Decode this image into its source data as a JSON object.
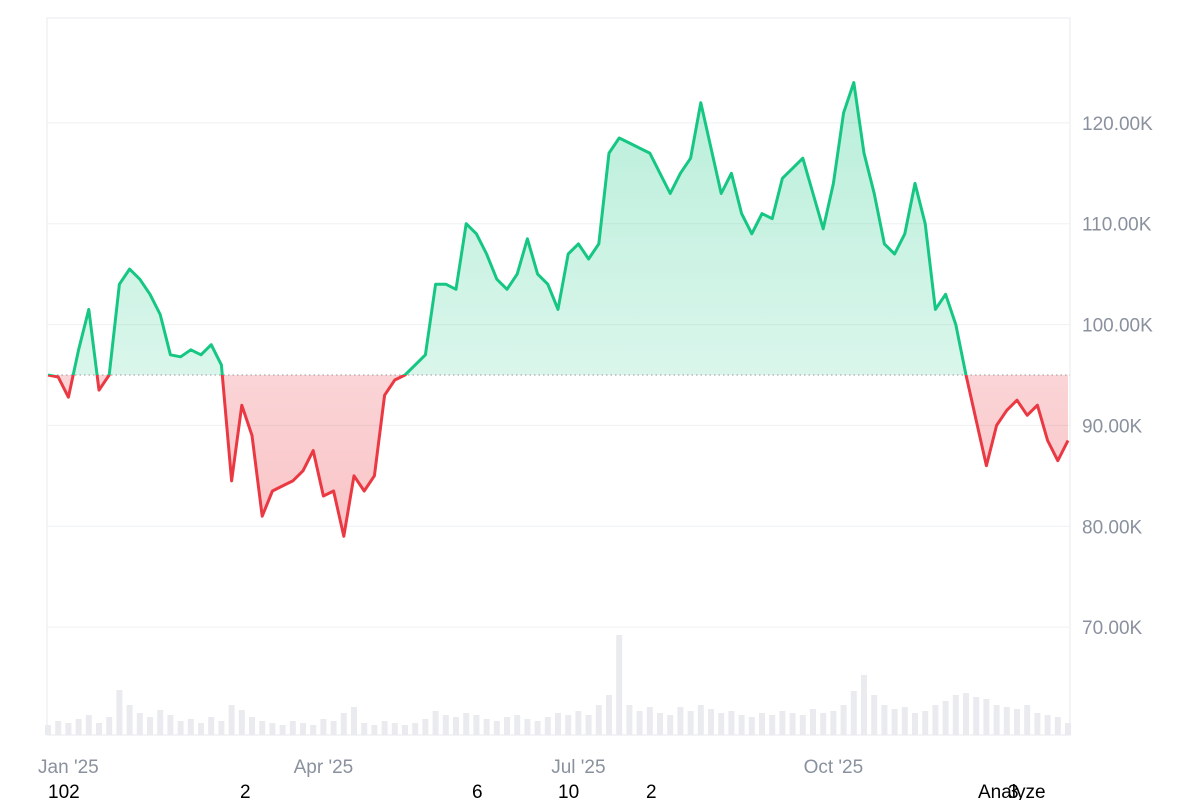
{
  "chart_data": {
    "type": "baseline-area",
    "categories": [
      null,
      null,
      "Jan '25",
      null,
      null,
      null,
      null,
      null,
      null,
      null,
      null,
      null,
      null,
      null,
      null,
      null,
      null,
      null,
      null,
      null,
      null,
      null,
      null,
      null,
      null,
      null,
      null,
      "Apr '25",
      null,
      null,
      null,
      null,
      null,
      null,
      null,
      null,
      null,
      null,
      null,
      null,
      null,
      null,
      null,
      null,
      null,
      null,
      null,
      null,
      null,
      null,
      null,
      null,
      "Jul '25",
      null,
      null,
      null,
      null,
      null,
      null,
      null,
      null,
      null,
      null,
      null,
      null,
      null,
      null,
      null,
      null,
      null,
      null,
      null,
      null,
      null,
      null,
      null,
      null,
      "Oct '25",
      null,
      null,
      null,
      null,
      null,
      null,
      null,
      null,
      null,
      null,
      null,
      null,
      null,
      null,
      null,
      null,
      null,
      null,
      null,
      null,
      null,
      null,
      null
    ],
    "values": [
      95000,
      94800,
      92800,
      97500,
      101500,
      93500,
      95000,
      104000,
      105500,
      104500,
      103000,
      101000,
      97000,
      96800,
      97500,
      97000,
      98000,
      96000,
      84500,
      92000,
      89000,
      81000,
      83500,
      84000,
      84500,
      85500,
      87500,
      83000,
      83500,
      79000,
      85000,
      83500,
      85000,
      93000,
      94500,
      95000,
      96000,
      97000,
      104000,
      104000,
      103500,
      110000,
      109000,
      107000,
      104500,
      103500,
      105000,
      108500,
      105000,
      104000,
      101500,
      107000,
      108000,
      106500,
      108000,
      117000,
      118500,
      118000,
      117500,
      117000,
      115000,
      113000,
      115000,
      116500,
      122000,
      117500,
      113000,
      115000,
      111000,
      109000,
      111000,
      110500,
      114500,
      115500,
      116500,
      113000,
      109500,
      114000,
      121000,
      124000,
      117000,
      113000,
      108000,
      107000,
      109000,
      114000,
      110000,
      101500,
      103000,
      100000,
      95000,
      90500,
      86000,
      90000,
      91500,
      92500,
      91000,
      92000,
      88500,
      86500,
      88500
    ],
    "baseline": 95000,
    "volume": [
      10,
      14,
      12,
      16,
      20,
      12,
      18,
      45,
      30,
      22,
      18,
      25,
      20,
      14,
      16,
      12,
      18,
      14,
      30,
      25,
      18,
      14,
      12,
      10,
      14,
      12,
      10,
      16,
      14,
      22,
      28,
      12,
      10,
      14,
      12,
      10,
      12,
      16,
      24,
      20,
      18,
      22,
      20,
      16,
      14,
      18,
      20,
      16,
      14,
      18,
      22,
      20,
      24,
      20,
      30,
      40,
      100,
      30,
      24,
      28,
      22,
      20,
      28,
      24,
      30,
      26,
      22,
      24,
      20,
      18,
      22,
      20,
      24,
      22,
      20,
      26,
      22,
      24,
      30,
      44,
      60,
      40,
      30,
      26,
      28,
      22,
      24,
      30,
      34,
      40,
      42,
      38,
      36,
      30,
      28,
      26,
      30,
      22,
      20,
      18,
      12
    ],
    "colors": {
      "above": "#16c784",
      "below": "#ea3943",
      "volume": "#e9ebef"
    },
    "ylim": [
      59300,
      130400
    ],
    "yticks": [
      {
        "value": 70000,
        "label": "70.00K"
      },
      {
        "value": 80000,
        "label": "80.00K"
      },
      {
        "value": 90000,
        "label": "90.00K"
      },
      {
        "value": 100000,
        "label": "100.00K"
      },
      {
        "value": 110000,
        "label": "110.00K"
      },
      {
        "value": 120000,
        "label": "120.00K"
      }
    ],
    "grid": true
  },
  "footer": {
    "counts": [
      "102",
      "2",
      "6",
      "10",
      "2",
      "3"
    ],
    "action": "Analyze"
  }
}
